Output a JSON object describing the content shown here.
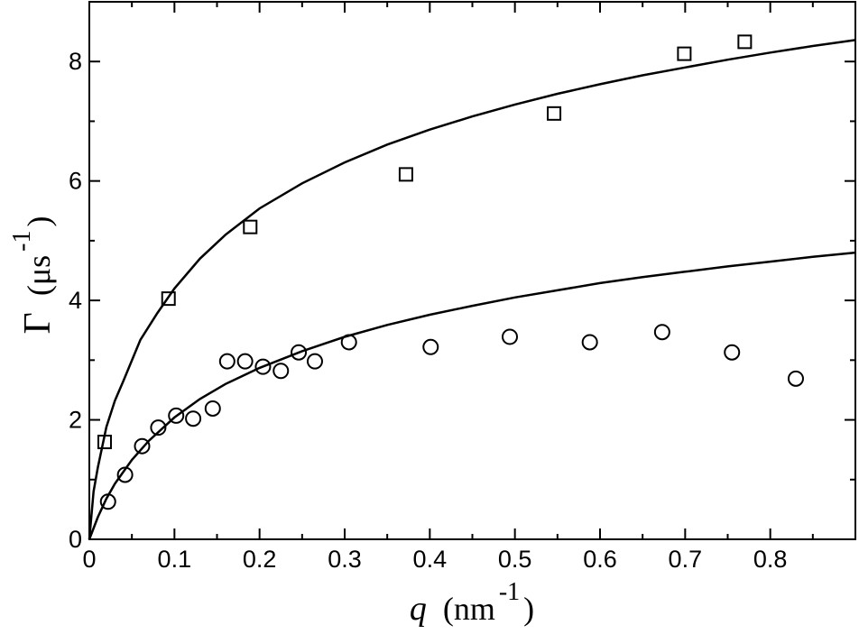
{
  "chart_data": {
    "type": "scatter",
    "xlabel": {
      "var": "q",
      "unit_open": "(nm",
      "unit_exp": "-1",
      "unit_close": ")"
    },
    "ylabel": {
      "var": "Γ",
      "unit_open": "(μs",
      "unit_exp": "-1",
      "unit_close": ")"
    },
    "xlim": [
      0,
      0.9
    ],
    "ylim": [
      0,
      9
    ],
    "x_ticks": [
      0,
      0.1,
      0.2,
      0.3,
      0.4,
      0.5,
      0.6,
      0.7,
      0.8
    ],
    "x_tick_labels": [
      "0",
      "0.1",
      "0.2",
      "0.3",
      "0.4",
      "0.5",
      "0.6",
      "0.7",
      "0.8"
    ],
    "y_ticks": [
      0,
      2,
      4,
      6,
      8
    ],
    "y_tick_labels": [
      "0",
      "2",
      "4",
      "6",
      "8"
    ],
    "grid": false,
    "series": [
      {
        "marker": "square",
        "x": [
          0.018,
          0.093,
          0.189,
          0.372,
          0.546,
          0.699,
          0.77
        ],
        "y": [
          1.63,
          4.03,
          5.23,
          6.11,
          7.13,
          8.13,
          8.33
        ]
      },
      {
        "marker": "circle",
        "x": [
          0.022,
          0.042,
          0.062,
          0.081,
          0.102,
          0.122,
          0.145,
          0.162,
          0.183,
          0.204,
          0.225,
          0.246,
          0.265,
          0.305,
          0.401,
          0.494,
          0.588,
          0.673,
          0.755,
          0.83
        ],
        "y": [
          0.63,
          1.08,
          1.56,
          1.87,
          2.07,
          2.02,
          2.19,
          2.98,
          2.98,
          2.89,
          2.82,
          3.13,
          2.98,
          3.3,
          3.22,
          3.39,
          3.3,
          3.47,
          3.13,
          2.69
        ]
      },
      {
        "line": "solid",
        "x": [
          0,
          0.005,
          0.01,
          0.02,
          0.03,
          0.04,
          0.06,
          0.08,
          0.1,
          0.13,
          0.16,
          0.2,
          0.25,
          0.3,
          0.35,
          0.4,
          0.45,
          0.5,
          0.55,
          0.6,
          0.65,
          0.7,
          0.75,
          0.8,
          0.85,
          0.9
        ],
        "y": [
          0,
          0.8,
          1.2,
          1.88,
          2.32,
          2.65,
          3.34,
          3.79,
          4.2,
          4.7,
          5.1,
          5.54,
          5.96,
          6.31,
          6.61,
          6.86,
          7.08,
          7.28,
          7.46,
          7.62,
          7.77,
          7.9,
          8.03,
          8.15,
          8.26,
          8.36
        ]
      },
      {
        "line": "solid",
        "x": [
          0,
          0.01,
          0.02,
          0.03,
          0.05,
          0.07,
          0.1,
          0.13,
          0.16,
          0.2,
          0.25,
          0.3,
          0.35,
          0.4,
          0.45,
          0.5,
          0.55,
          0.6,
          0.65,
          0.7,
          0.75,
          0.8,
          0.85,
          0.9
        ],
        "y": [
          0,
          0.37,
          0.68,
          0.93,
          1.33,
          1.65,
          2.04,
          2.35,
          2.6,
          2.87,
          3.15,
          3.39,
          3.59,
          3.76,
          3.91,
          4.05,
          4.17,
          4.29,
          4.39,
          4.48,
          4.57,
          4.65,
          4.73,
          4.8
        ]
      }
    ]
  }
}
